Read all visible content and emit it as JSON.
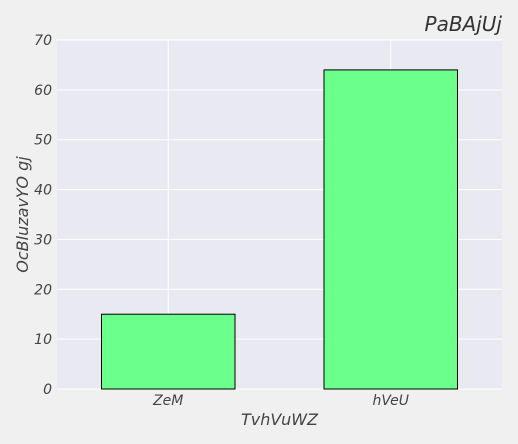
{
  "chart_data": {
    "type": "bar",
    "title": "PaBAjUj",
    "xlabel": "TvhVuWZ",
    "ylabel": "OcBluzavYO gj",
    "categories": [
      "ZeM",
      "hVeU"
    ],
    "values": [
      15,
      64
    ],
    "ylim": [
      0,
      70
    ],
    "yticks": [
      0,
      10,
      20,
      30,
      40,
      50,
      60,
      70
    ],
    "grid": true,
    "colors": {
      "bar_fill": "#6bff8b",
      "bar_edge": "#000000",
      "plot_background": "#e9e9f1",
      "figure_background": "#f0f0f0",
      "grid": "#ffffff"
    }
  }
}
